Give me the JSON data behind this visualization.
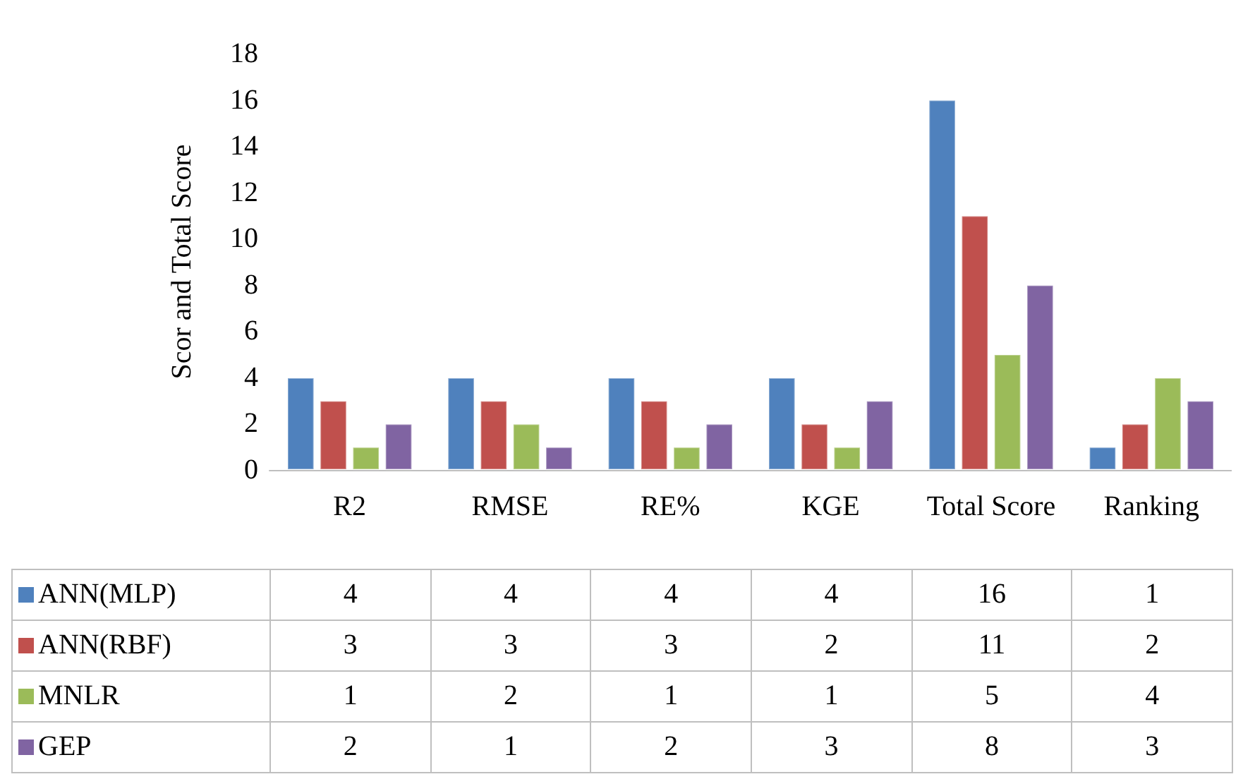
{
  "chart_data": {
    "type": "bar",
    "ylabel": "Scor and Total Score",
    "categories": [
      "R2",
      "RMSE",
      "RE%",
      "KGE",
      "Total Score",
      "Ranking"
    ],
    "series": [
      {
        "name": "ANN(MLP)",
        "color": "#4f81bd",
        "values": [
          4,
          4,
          4,
          4,
          16,
          1
        ]
      },
      {
        "name": "ANN(RBF)",
        "color": "#c0504d",
        "values": [
          3,
          3,
          3,
          2,
          11,
          2
        ]
      },
      {
        "name": "MNLR",
        "color": "#9bbb59",
        "values": [
          1,
          2,
          1,
          1,
          5,
          4
        ]
      },
      {
        "name": "GEP",
        "color": "#8064a2",
        "values": [
          2,
          1,
          2,
          3,
          8,
          3
        ]
      }
    ],
    "ylim": [
      0,
      18
    ],
    "yticks": [
      0,
      2,
      4,
      6,
      8,
      10,
      12,
      14,
      16,
      18
    ],
    "grid": false,
    "legend": "bottom",
    "data_labels": true
  }
}
